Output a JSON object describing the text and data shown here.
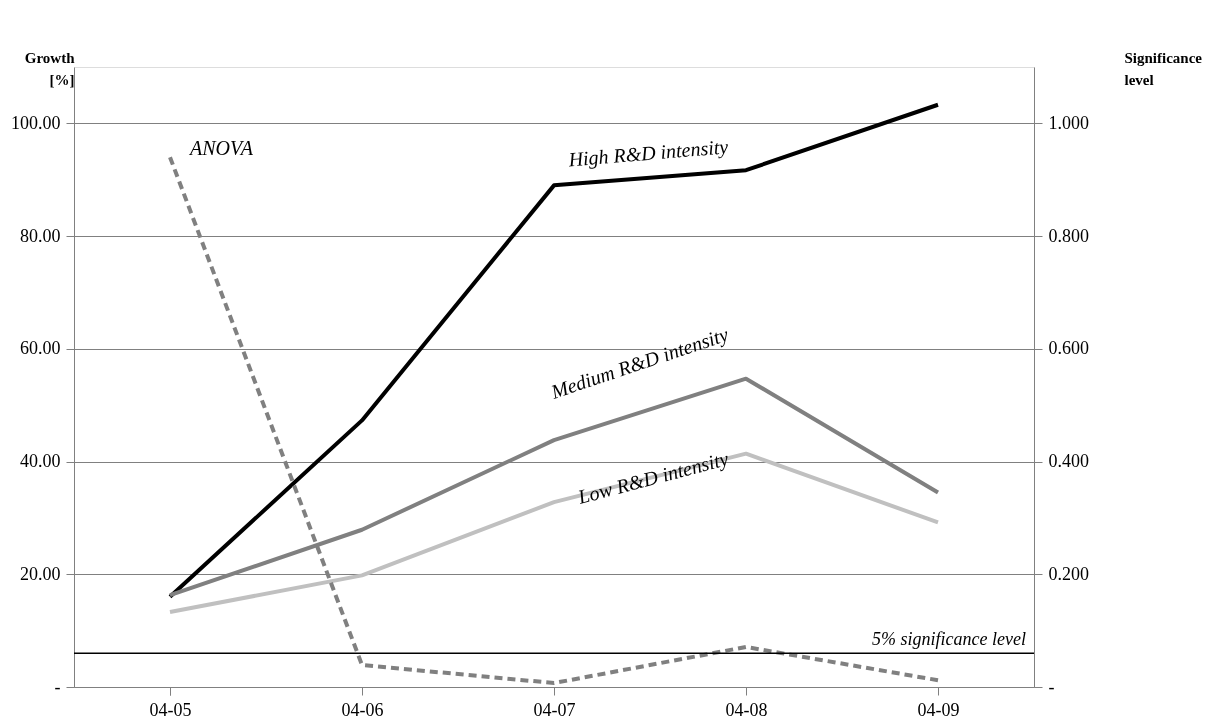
{
  "chart_data": {
    "type": "line",
    "ylabel": "Growth [%]",
    "y2label": "Significance level",
    "categories": [
      "04-05",
      "04-06",
      "04-07",
      "04-08",
      "04-09"
    ],
    "series": [
      {
        "name": "High R&D intensity",
        "color": "#000000",
        "values": [
          16.0,
          47.3,
          89.0,
          91.7,
          103.3
        ]
      },
      {
        "name": "Medium R&D intensity",
        "color": "#808080",
        "values": [
          16.3,
          27.9,
          43.8,
          54.7,
          34.5
        ]
      },
      {
        "name": "Low R&D intensity",
        "color": "#c0c0c0",
        "values": [
          13.3,
          19.8,
          32.8,
          41.4,
          29.2
        ]
      },
      {
        "name": "ANOVA",
        "color": "#808080",
        "axis": "y2",
        "line_style": "dashed",
        "values": [
          0.94,
          0.039,
          0.007,
          0.071,
          0.012
        ]
      }
    ],
    "ylim": [
      0,
      110
    ],
    "yticks": [
      {
        "value": 0,
        "label": "-"
      },
      {
        "value": 20,
        "label": "20.00"
      },
      {
        "value": 40,
        "label": "40.00"
      },
      {
        "value": 60,
        "label": "60.00"
      },
      {
        "value": 80,
        "label": "80.00"
      },
      {
        "value": 100,
        "label": "100.00"
      }
    ],
    "y2lim": [
      0,
      1.1
    ],
    "y2ticks": [
      {
        "value": 0,
        "label": "-"
      },
      {
        "value": 0.2,
        "label": "0.200"
      },
      {
        "value": 0.4,
        "label": "0.400"
      },
      {
        "value": 0.6,
        "label": "0.600"
      },
      {
        "value": 0.8,
        "label": "0.800"
      },
      {
        "value": 1.0,
        "label": "1.000"
      }
    ],
    "ref_lines": [
      {
        "axis": "y2",
        "value": 0.06,
        "label": "5% significance level",
        "color": "#000000"
      }
    ],
    "grid": "y",
    "line_style": "solid"
  }
}
